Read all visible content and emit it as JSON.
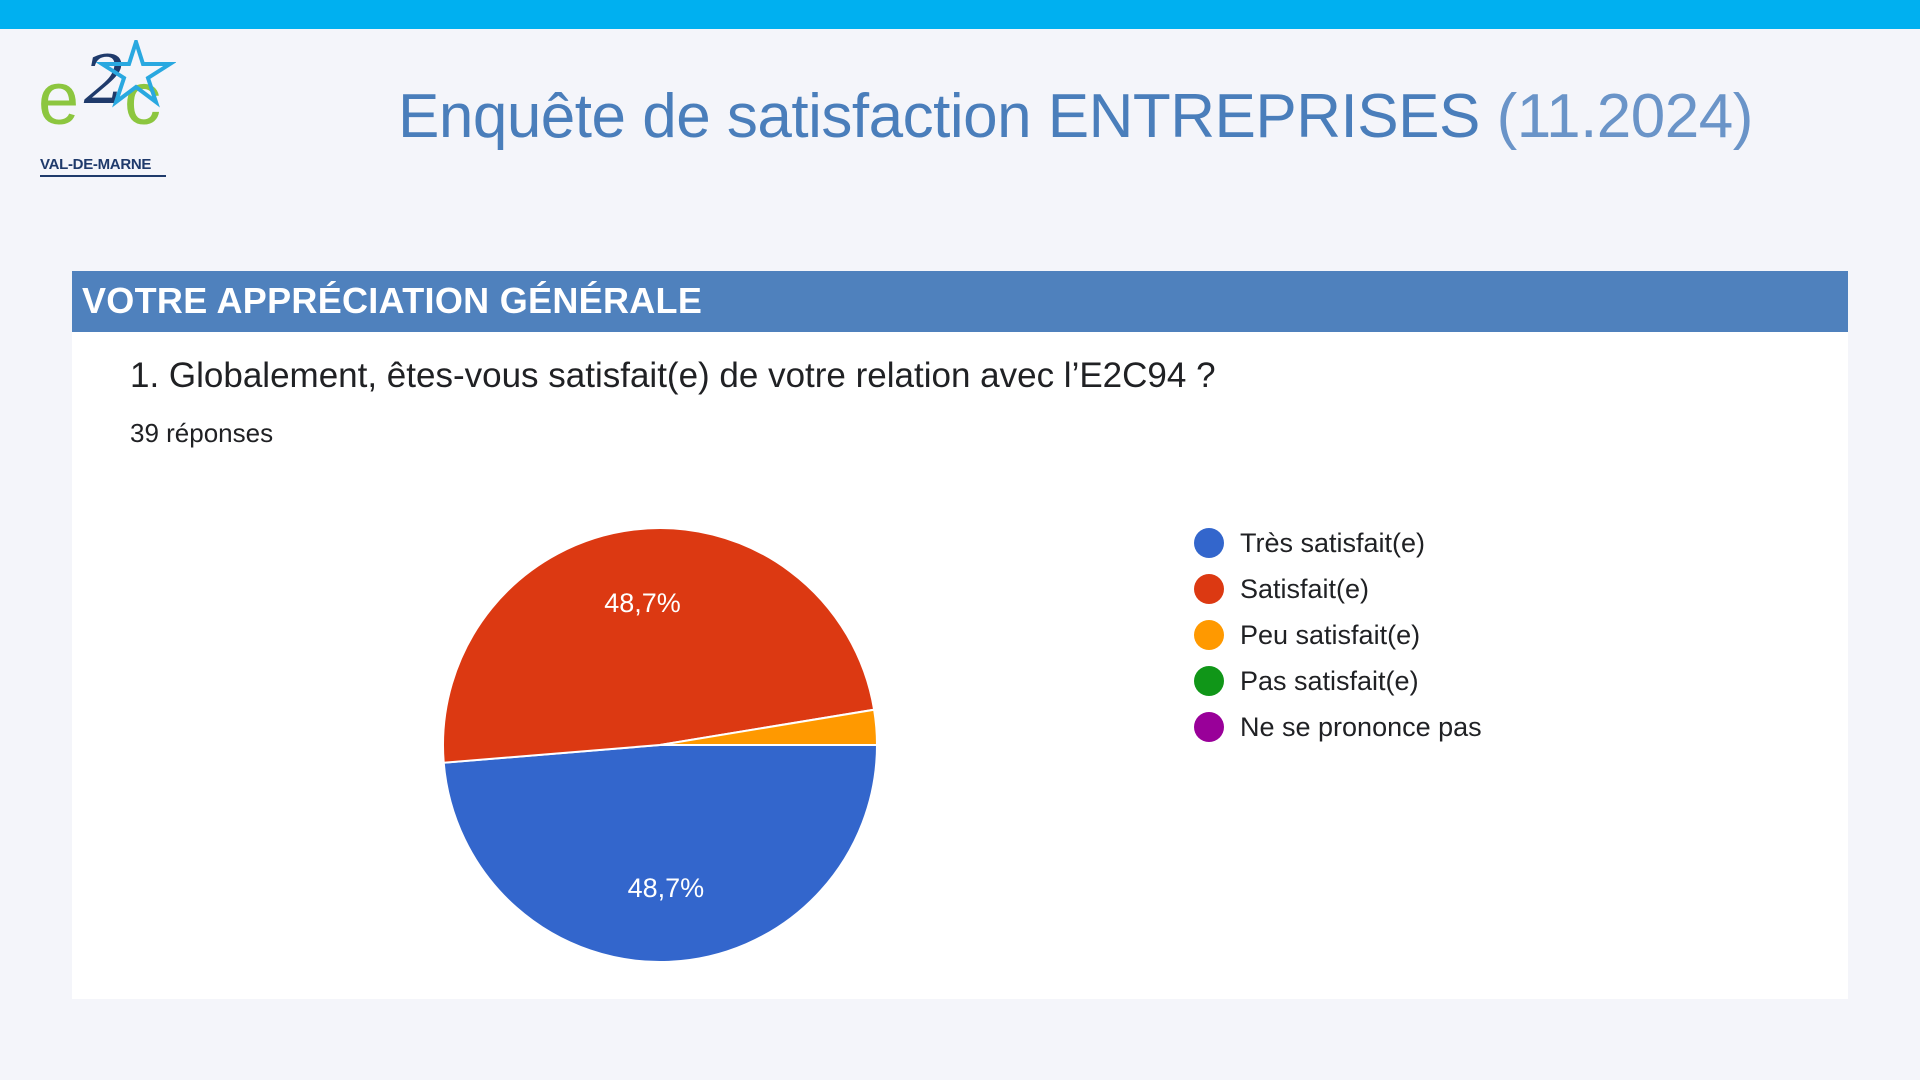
{
  "header": {
    "title_main": "Enquête de satisfaction ENTREPRISES",
    "title_date": "(11.2024)",
    "accent_color": "#00b0f0"
  },
  "logo": {
    "letters": [
      "e",
      "2",
      "c"
    ],
    "subtitle": "VAL-DE-MARNE",
    "icon": "star-icon"
  },
  "section": {
    "title": "VOTRE APPRÉCIATION GÉNÉRALE",
    "color": "#4f81bd"
  },
  "question": {
    "text": "1. Globalement, êtes-vous satisfait(e) de votre relation avec l’E2C94 ?",
    "responses": "39 réponses"
  },
  "chart_data": {
    "type": "pie",
    "title": "",
    "categories": [
      "Très satisfait(e)",
      "Satisfait(e)",
      "Peu satisfait(e)",
      "Pas satisfait(e)",
      "Ne se prononce pas"
    ],
    "values": [
      48.7,
      48.7,
      2.6,
      0,
      0
    ],
    "value_labels": [
      "48,7%",
      "48,7%",
      "",
      "",
      ""
    ],
    "colors": [
      "#3366cc",
      "#dc3912",
      "#ff9900",
      "#109618",
      "#990099"
    ],
    "legend_position": "right"
  }
}
